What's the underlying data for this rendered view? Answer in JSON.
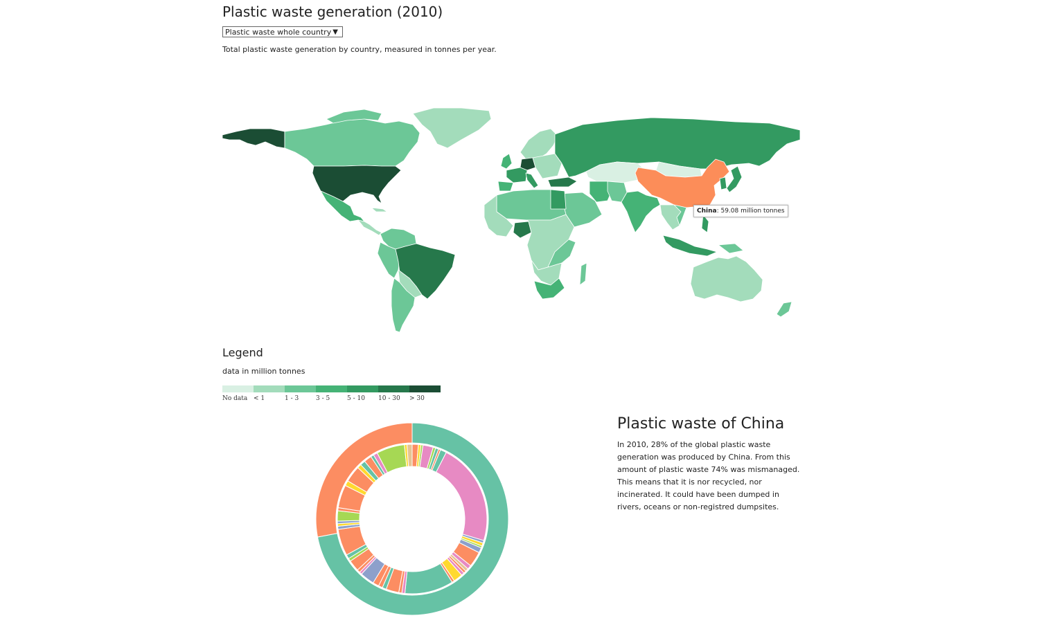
{
  "header": {
    "title": "Plastic waste generation (2010)",
    "selector_value": "Plastic waste whole country",
    "subtitle": "Total plastic waste generation by country, measured in tonnes per year."
  },
  "map": {
    "tooltip": {
      "country": "China",
      "value_text": ": 59.08 million tonnes"
    },
    "highlight_color": "#fc8d59"
  },
  "legend": {
    "title": "Legend",
    "unit": "data in million tonnes",
    "bins": [
      {
        "label": "No data",
        "color": "#d9f0e3"
      },
      {
        "label": "< 1",
        "color": "#a3dcbb"
      },
      {
        "label": "1 - 3",
        "color": "#6cc797"
      },
      {
        "label": "3 - 5",
        "color": "#45b376"
      },
      {
        "label": "5 - 10",
        "color": "#339a61"
      },
      {
        "label": "10 - 30",
        "color": "#26784b"
      },
      {
        "label": "> 30",
        "color": "#1b4d34"
      }
    ]
  },
  "china_panel": {
    "title": "Plastic waste of China",
    "text": "In 2010, 28% of the global plastic waste generation was produced by China. From this amount of plastic waste 74% was mismanaged. This means that it is nor recycled, nor incinerated. It could have been dumped in rivers, oceans or non-registred dumpsites."
  },
  "chart_data": {
    "type": "pie",
    "rings": [
      {
        "ring": "outer",
        "segments": [
          {
            "value": 72,
            "color": "#66c2a5"
          },
          {
            "value": 28,
            "color": "#fc8d62"
          }
        ]
      },
      {
        "ring": "inner",
        "segments": [
          {
            "value": 1.2,
            "color": "#fc8d62"
          },
          {
            "value": 0.5,
            "color": "#ffd92f"
          },
          {
            "value": 0.4,
            "color": "#a6d854"
          },
          {
            "value": 2.0,
            "color": "#e78ac3"
          },
          {
            "value": 0.5,
            "color": "#a6d854"
          },
          {
            "value": 0.6,
            "color": "#66c2a5"
          },
          {
            "value": 0.4,
            "color": "#fc8d62"
          },
          {
            "value": 1.2,
            "color": "#66c2a5"
          },
          {
            "value": 20.0,
            "color": "#e78ac3"
          },
          {
            "value": 0.5,
            "color": "#8da0cb"
          },
          {
            "value": 0.6,
            "color": "#ffd92f"
          },
          {
            "value": 0.4,
            "color": "#a6d854"
          },
          {
            "value": 1.0,
            "color": "#8da0cb"
          },
          {
            "value": 3.0,
            "color": "#fc8d62"
          },
          {
            "value": 0.8,
            "color": "#e78ac3"
          },
          {
            "value": 0.6,
            "color": "#e5c494"
          },
          {
            "value": 0.5,
            "color": "#fc8d62"
          },
          {
            "value": 0.6,
            "color": "#e78ac3"
          },
          {
            "value": 1.8,
            "color": "#ffd92f"
          },
          {
            "value": 0.5,
            "color": "#fc8d62"
          },
          {
            "value": 9.5,
            "color": "#66c2a5"
          },
          {
            "value": 0.6,
            "color": "#e78ac3"
          },
          {
            "value": 0.6,
            "color": "#fc8d62"
          },
          {
            "value": 2.5,
            "color": "#fc8d62"
          },
          {
            "value": 0.8,
            "color": "#66c2a5"
          },
          {
            "value": 0.8,
            "color": "#fc8d62"
          },
          {
            "value": 1.2,
            "color": "#fc8d62"
          },
          {
            "value": 2.8,
            "color": "#8da0cb"
          },
          {
            "value": 0.5,
            "color": "#e78ac3"
          },
          {
            "value": 0.6,
            "color": "#fc8d62"
          },
          {
            "value": 2.2,
            "color": "#fc8d62"
          },
          {
            "value": 0.6,
            "color": "#a6d854"
          },
          {
            "value": 0.8,
            "color": "#66c2a5"
          },
          {
            "value": 5.2,
            "color": "#fc8d62"
          },
          {
            "value": 0.6,
            "color": "#8da0cb"
          },
          {
            "value": 0.5,
            "color": "#ffd92f"
          },
          {
            "value": 0.5,
            "color": "#8da0cb"
          },
          {
            "value": 2.0,
            "color": "#a6d854"
          },
          {
            "value": 0.6,
            "color": "#fc8d62"
          },
          {
            "value": 4.5,
            "color": "#fc8d62"
          },
          {
            "value": 1.0,
            "color": "#ffd92f"
          },
          {
            "value": 3.2,
            "color": "#fc8d62"
          },
          {
            "value": 0.8,
            "color": "#ffd92f"
          },
          {
            "value": 1.0,
            "color": "#66c2a5"
          },
          {
            "value": 1.5,
            "color": "#fc8d62"
          },
          {
            "value": 0.6,
            "color": "#66c2a5"
          },
          {
            "value": 0.8,
            "color": "#e78ac3"
          },
          {
            "value": 5.5,
            "color": "#a6d854"
          },
          {
            "value": 0.5,
            "color": "#ffd92f"
          },
          {
            "value": 1.0,
            "color": "#e5c494"
          }
        ]
      }
    ]
  }
}
